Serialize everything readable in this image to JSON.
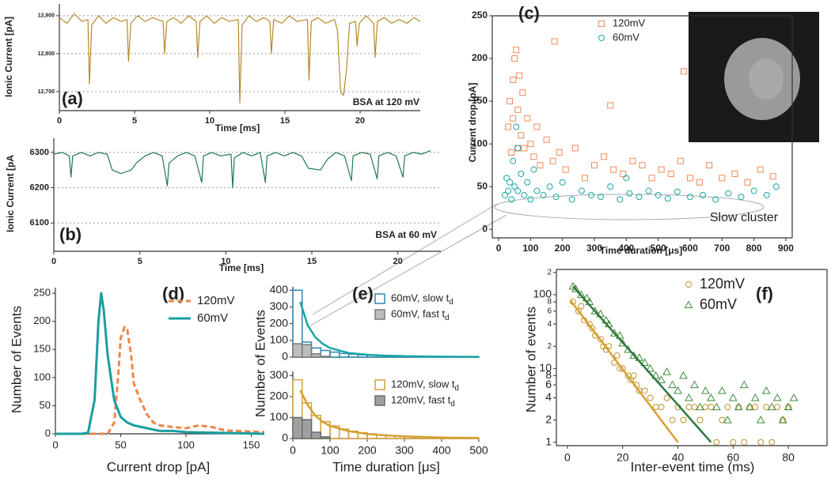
{
  "chart_data": [
    {
      "type": "line",
      "panel": "(a)",
      "ylabel": "Ionic Current [pA]",
      "xlabel": "Time [ms]",
      "annotation": "BSA at 120 mV",
      "grid": true,
      "xlim": [
        0,
        24
      ],
      "xticks": [
        0,
        5,
        10,
        15,
        20
      ],
      "ylim": [
        12650,
        12931
      ],
      "yticks": [
        {
          "value": 12700,
          "label": "12,700"
        },
        {
          "value": 12800,
          "label": "12,800"
        },
        {
          "value": 12900,
          "label": "12,900"
        }
      ],
      "series": [
        {
          "color": "#b58a2a",
          "x": [
            0,
            0.5,
            1.0,
            1.5,
            1.9,
            2.0,
            2.15,
            2.6,
            3.1,
            3.6,
            4.1,
            4.5,
            4.6,
            4.75,
            5.2,
            5.7,
            6.2,
            6.9,
            7.0,
            7.15,
            7.6,
            8.1,
            8.6,
            9.1,
            9.2,
            9.35,
            9.8,
            10.3,
            10.8,
            11.3,
            11.9,
            12.0,
            12.15,
            12.6,
            13.1,
            13.6,
            14.0,
            14.1,
            14.25,
            14.8,
            15.3,
            15.8,
            16.5,
            16.6,
            16.75,
            17.2,
            17.7,
            18.3,
            18.5,
            18.7,
            18.9,
            19.1,
            19.3,
            19.7,
            19.8,
            19.95,
            20.4,
            20.9,
            21.0,
            21.15,
            21.6,
            22.1,
            22.6,
            23.1,
            23.6,
            24.0
          ],
          "values": [
            12895,
            12880,
            12905,
            12885,
            12890,
            12720,
            12875,
            12900,
            12880,
            12895,
            12885,
            12890,
            12780,
            12880,
            12900,
            12885,
            12895,
            12885,
            12800,
            12885,
            12895,
            12880,
            12900,
            12885,
            12790,
            12885,
            12900,
            12880,
            12895,
            12885,
            12890,
            12670,
            12875,
            12900,
            12885,
            12895,
            12885,
            12800,
            12890,
            12880,
            12900,
            12885,
            12890,
            12730,
            12885,
            12895,
            12880,
            12890,
            12860,
            12700,
            12690,
            12760,
            12880,
            12885,
            12820,
            12880,
            12900,
            12880,
            12790,
            12885,
            12895,
            12880,
            12890,
            12880,
            12895,
            12885
          ]
        }
      ]
    },
    {
      "type": "line",
      "panel": "(b)",
      "ylabel": "Ionic Current [pA",
      "xlabel": "Time [ms]",
      "annotation": "BSA at 60 mV",
      "grid": true,
      "xlim": [
        0,
        22.5
      ],
      "xticks": [
        0,
        5,
        10,
        15,
        20
      ],
      "ylim": [
        6020,
        6340
      ],
      "yticks": [
        6100,
        6200,
        6300
      ],
      "series": [
        {
          "color": "#1f7a4a",
          "x": [
            0,
            0.5,
            0.9,
            1.0,
            1.1,
            1.6,
            2.1,
            2.6,
            3.1,
            3.4,
            3.9,
            4.5,
            4.8,
            5.3,
            5.8,
            6.3,
            6.6,
            6.7,
            7.2,
            7.7,
            8.2,
            8.6,
            8.7,
            9.2,
            9.7,
            10.3,
            10.4,
            10.5,
            11.0,
            11.5,
            12.0,
            12.3,
            12.4,
            12.9,
            13.4,
            13.9,
            14.4,
            14.8,
            15.5,
            15.9,
            16.4,
            16.9,
            17.3,
            17.4,
            17.9,
            18.4,
            18.8,
            18.9,
            19.4,
            19.9,
            20.3,
            20.4,
            20.9,
            21.4,
            21.9
          ],
          "values": [
            6295,
            6300,
            6290,
            6230,
            6290,
            6300,
            6290,
            6300,
            6295,
            6250,
            6240,
            6250,
            6270,
            6290,
            6300,
            6290,
            6205,
            6270,
            6290,
            6300,
            6290,
            6215,
            6290,
            6300,
            6290,
            6295,
            6200,
            6285,
            6300,
            6290,
            6300,
            6215,
            6290,
            6300,
            6290,
            6300,
            6290,
            6255,
            6250,
            6280,
            6300,
            6290,
            6220,
            6290,
            6300,
            6295,
            6225,
            6290,
            6300,
            6290,
            6230,
            6290,
            6300,
            6295,
            6305
          ]
        }
      ]
    },
    {
      "type": "scatter",
      "panel": "(c)",
      "ylabel": "Current drop [pA]",
      "xlabel": "Time duration [μs]",
      "annotation": "Slow cluster",
      "xlim": [
        -20,
        920
      ],
      "xticks": [
        0,
        100,
        200,
        300,
        400,
        500,
        600,
        700,
        800,
        900
      ],
      "ylim": [
        -10,
        250
      ],
      "yticks": [
        0,
        50,
        100,
        150,
        200,
        250
      ],
      "series": [
        {
          "name": "120mV",
          "color": "#f08a5a",
          "marker": "square",
          "x": [
            30,
            35,
            40,
            45,
            50,
            55,
            60,
            65,
            70,
            75,
            80,
            90,
            100,
            110,
            120,
            130,
            150,
            170,
            190,
            210,
            240,
            270,
            300,
            330,
            360,
            390,
            420,
            450,
            480,
            510,
            540,
            570,
            600,
            630,
            660,
            700,
            740,
            780,
            820,
            860,
            175,
            350,
            580,
            60,
            45
          ],
          "values": [
            120,
            150,
            90,
            175,
            200,
            210,
            140,
            180,
            110,
            160,
            95,
            130,
            100,
            85,
            120,
            75,
            105,
            80,
            90,
            70,
            95,
            60,
            75,
            85,
            70,
            65,
            80,
            75,
            60,
            70,
            65,
            80,
            60,
            55,
            75,
            60,
            65,
            55,
            70,
            62,
            220,
            145,
            185,
            95,
            130
          ]
        },
        {
          "name": "60mV",
          "color": "#1aa5a5",
          "marker": "circle",
          "x": [
            20,
            25,
            30,
            35,
            40,
            45,
            50,
            55,
            60,
            70,
            80,
            90,
            100,
            120,
            140,
            160,
            180,
            200,
            230,
            260,
            290,
            320,
            350,
            380,
            410,
            440,
            470,
            500,
            530,
            560,
            600,
            640,
            680,
            720,
            760,
            800,
            840,
            870,
            60,
            110,
            400
          ],
          "values": [
            40,
            60,
            45,
            55,
            35,
            80,
            50,
            120,
            45,
            65,
            40,
            55,
            35,
            45,
            40,
            50,
            38,
            55,
            35,
            45,
            40,
            38,
            50,
            35,
            42,
            38,
            45,
            40,
            36,
            44,
            38,
            40,
            35,
            42,
            38,
            45,
            40,
            50,
            95,
            70,
            60
          ]
        }
      ]
    },
    {
      "type": "line",
      "panel": "(d)",
      "ylabel": "Number of Events",
      "xlabel": "Current drop [pA]",
      "xlim": [
        0,
        160
      ],
      "xticks": [
        0,
        50,
        100,
        150
      ],
      "ylim": [
        0,
        260
      ],
      "yticks": [
        0,
        50,
        100,
        150,
        200,
        250
      ],
      "series": [
        {
          "name": "120mV",
          "color": "#f0844a",
          "dash": true,
          "x": [
            0,
            40,
            45,
            48,
            50,
            53,
            55,
            58,
            60,
            65,
            70,
            75,
            80,
            90,
            100,
            110,
            120,
            130,
            140,
            160
          ],
          "values": [
            0,
            0,
            20,
            100,
            170,
            190,
            185,
            140,
            90,
            60,
            35,
            20,
            15,
            12,
            10,
            15,
            12,
            6,
            5,
            3
          ]
        },
        {
          "name": "60mV",
          "color": "#1a9ea0",
          "x": [
            0,
            20,
            25,
            30,
            33,
            35,
            37,
            40,
            45,
            50,
            55,
            60,
            70,
            80,
            90,
            100,
            120,
            140,
            160
          ],
          "values": [
            0,
            0,
            2,
            60,
            200,
            250,
            220,
            140,
            60,
            30,
            20,
            15,
            10,
            5,
            5,
            3,
            2,
            1,
            0
          ]
        }
      ]
    },
    {
      "type": "histogram",
      "panel": "(e)",
      "xlim": [
        0,
        500
      ],
      "ylim": [
        0,
        420
      ],
      "yticks": [
        0,
        100,
        200,
        300,
        400
      ],
      "bins": [
        0,
        25,
        50,
        75,
        100,
        125,
        150,
        175,
        200,
        225,
        250,
        275,
        300,
        325,
        350,
        375,
        400,
        425,
        450,
        475,
        500
      ],
      "series": [
        {
          "name": "60mV, slow td",
          "color": "#2e86b0",
          "fill": "none",
          "values": [
            400,
            90,
            55,
            40,
            30,
            22,
            18,
            14,
            12,
            10,
            8,
            7,
            6,
            5,
            4,
            4,
            3,
            3,
            2,
            2
          ]
        },
        {
          "name": "60mV, fast td",
          "color": "#7a7a7a",
          "fill": "#bdbdbd",
          "values": [
            80,
            75,
            20,
            5,
            0,
            0,
            0,
            0,
            0,
            0,
            0,
            0,
            0,
            0,
            0,
            0,
            0,
            0,
            0,
            0
          ]
        }
      ],
      "fits": [
        {
          "color": "#1aa5a5",
          "x": [
            20,
            40,
            60,
            80,
            100,
            150,
            200,
            250,
            300,
            400,
            500
          ],
          "values": [
            330,
            190,
            120,
            80,
            55,
            25,
            14,
            9,
            6,
            3,
            2
          ]
        }
      ]
    },
    {
      "type": "histogram",
      "ylabel": "Number of Events",
      "xlabel": "Time duration [μs]",
      "xlim": [
        0,
        500
      ],
      "xticks": [
        0,
        100,
        200,
        300,
        400,
        500
      ],
      "ylim": [
        0,
        320
      ],
      "yticks": [
        0,
        100,
        200,
        300
      ],
      "bins": [
        0,
        25,
        50,
        75,
        100,
        125,
        150,
        175,
        200,
        225,
        250,
        275,
        300,
        325,
        350,
        375,
        400,
        425,
        450,
        475,
        500
      ],
      "series": [
        {
          "name": "120mV, slow td",
          "color": "#d4a03a",
          "fill": "none",
          "values": [
            280,
            170,
            110,
            80,
            60,
            45,
            35,
            28,
            22,
            18,
            14,
            12,
            10,
            8,
            7,
            6,
            5,
            4,
            3,
            3
          ]
        },
        {
          "name": "120mV, fast td",
          "color": "#6a6a6a",
          "fill": "#a0a0a0",
          "values": [
            100,
            90,
            30,
            8,
            0,
            0,
            0,
            0,
            0,
            0,
            0,
            0,
            0,
            0,
            0,
            0,
            0,
            0,
            0,
            0
          ]
        }
      ],
      "fits": [
        {
          "color": "#d4a030",
          "x": [
            20,
            40,
            60,
            80,
            100,
            150,
            200,
            250,
            300,
            400,
            500
          ],
          "values": [
            230,
            160,
            110,
            80,
            60,
            35,
            22,
            15,
            10,
            5,
            3
          ]
        }
      ]
    },
    {
      "type": "scatter",
      "panel": "(f)",
      "ylabel": "Number of events",
      "xlabel": "Inter-event time (ms)",
      "ylog": true,
      "xlim": [
        -4,
        94
      ],
      "xticks": [
        0,
        20,
        40,
        60,
        80
      ],
      "ylim": [
        0.9,
        220
      ],
      "yticks": [
        1,
        2,
        4,
        6,
        8,
        10,
        {
          "value": 20,
          "label": "2"
        },
        {
          "value": 40,
          "label": "4"
        },
        {
          "value": 60,
          "label": "6"
        },
        {
          "value": 80,
          "label": "8"
        },
        100,
        {
          "value": 200,
          "label": "2"
        }
      ],
      "series": [
        {
          "name": "120mV",
          "color": "#c0902a",
          "marker": "circle",
          "x": [
            2,
            4,
            5,
            6,
            8,
            9,
            10,
            12,
            13,
            14,
            15,
            17,
            18,
            19,
            20,
            22,
            23,
            24,
            25,
            26,
            28,
            30,
            32,
            34,
            36,
            38,
            40,
            42,
            44,
            46,
            48,
            50,
            52,
            54,
            56,
            58,
            60,
            62,
            64,
            66,
            68,
            70,
            72,
            74,
            76,
            78,
            80
          ],
          "values": [
            80,
            60,
            70,
            45,
            40,
            35,
            28,
            25,
            20,
            18,
            20,
            12,
            15,
            10,
            10,
            8,
            7,
            8,
            6,
            5,
            5,
            4,
            3,
            3,
            4,
            2,
            3,
            2,
            3,
            3,
            2,
            3,
            3,
            1,
            2,
            3,
            1,
            3,
            1,
            3,
            3,
            1,
            3,
            1,
            3,
            2,
            3
          ]
        },
        {
          "name": "60mV",
          "color": "#3f8a3a",
          "marker": "triangle",
          "x": [
            2,
            3,
            5,
            7,
            8,
            10,
            12,
            14,
            15,
            17,
            19,
            20,
            22,
            24,
            26,
            28,
            30,
            32,
            34,
            36,
            38,
            40,
            42,
            44,
            46,
            48,
            50,
            52,
            54,
            56,
            58,
            60,
            62,
            64,
            66,
            68,
            70,
            72,
            74,
            76,
            78,
            80,
            82
          ],
          "values": [
            130,
            120,
            100,
            90,
            80,
            60,
            55,
            45,
            40,
            30,
            28,
            22,
            18,
            15,
            14,
            12,
            10,
            8,
            7,
            9,
            6,
            5,
            8,
            4,
            6,
            3,
            5,
            4,
            3,
            5,
            2,
            4,
            3,
            6,
            3,
            4,
            2,
            5,
            3,
            4,
            2,
            3,
            4
          ]
        }
      ],
      "fits": [
        {
          "color": "#d8a030",
          "x": [
            1,
            40
          ],
          "values": [
            85,
            1
          ]
        },
        {
          "color": "#2e7a40",
          "x": [
            2,
            52
          ],
          "values": [
            130,
            1
          ]
        }
      ]
    }
  ]
}
